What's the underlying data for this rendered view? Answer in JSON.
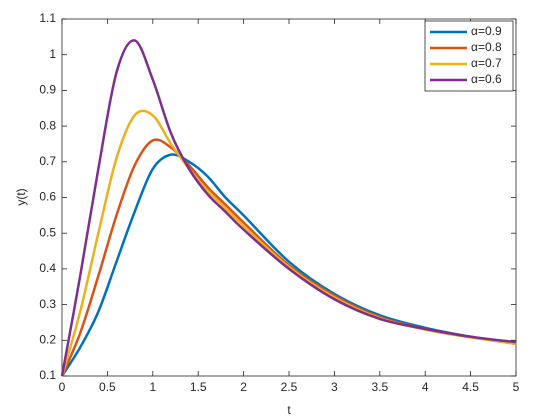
{
  "chart_data": {
    "type": "line",
    "xlabel": "t",
    "ylabel": "y(t)",
    "x": [
      0,
      0.2,
      0.4,
      0.6,
      0.8,
      1.0,
      1.2,
      1.4,
      1.6,
      1.8,
      2.0,
      2.5,
      3.0,
      3.5,
      4.0,
      4.5,
      5.0
    ],
    "series": [
      {
        "name": "α=0.9",
        "color": "#0072bd",
        "values": [
          0.1,
          0.18,
          0.28,
          0.42,
          0.56,
          0.68,
          0.72,
          0.7,
          0.66,
          0.6,
          0.55,
          0.42,
          0.33,
          0.27,
          0.235,
          0.21,
          0.19
        ]
      },
      {
        "name": "α=0.8",
        "color": "#d95319",
        "values": [
          0.1,
          0.22,
          0.38,
          0.55,
          0.69,
          0.76,
          0.74,
          0.69,
          0.63,
          0.58,
          0.53,
          0.41,
          0.325,
          0.265,
          0.232,
          0.21,
          0.19
        ]
      },
      {
        "name": "α=0.7",
        "color": "#edb120",
        "values": [
          0.1,
          0.28,
          0.5,
          0.71,
          0.83,
          0.83,
          0.75,
          0.68,
          0.62,
          0.57,
          0.52,
          0.405,
          0.32,
          0.262,
          0.23,
          0.208,
          0.19
        ]
      },
      {
        "name": "α=0.6",
        "color": "#7e2f8e",
        "values": [
          0.1,
          0.38,
          0.68,
          0.95,
          1.04,
          0.93,
          0.78,
          0.68,
          0.61,
          0.56,
          0.51,
          0.4,
          0.315,
          0.26,
          0.232,
          0.21,
          0.195
        ]
      }
    ],
    "xlim": [
      0,
      5
    ],
    "xticks": [
      0,
      0.5,
      1,
      1.5,
      2,
      2.5,
      3,
      3.5,
      4,
      4.5,
      5
    ],
    "ylim": [
      0.1,
      1.1
    ],
    "yticks": [
      0.1,
      0.2,
      0.3,
      0.4,
      0.5,
      0.6,
      0.7,
      0.8,
      0.9,
      1,
      1.1
    ],
    "grid": false,
    "legend": "top-right"
  }
}
